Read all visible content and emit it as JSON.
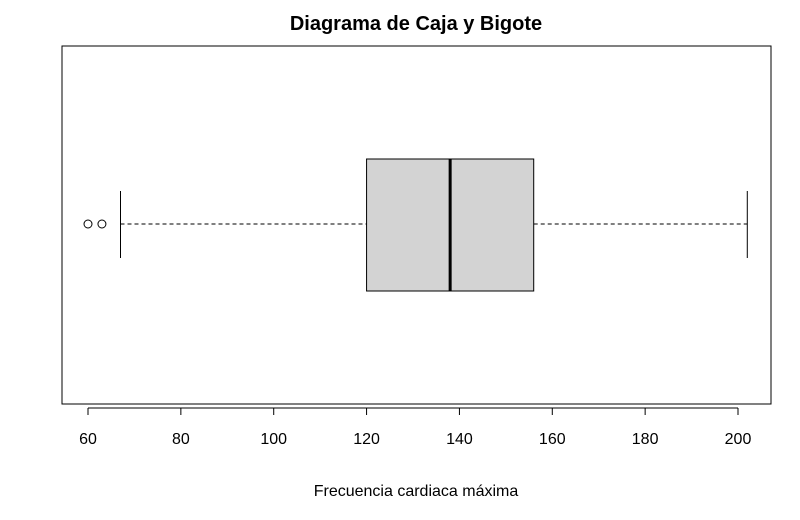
{
  "chart_data": {
    "type": "boxplot",
    "orientation": "horizontal",
    "title": "Diagrama de Caja y Bigote",
    "xlabel": "Frecuencia cardiaca máxima",
    "ylabel": "",
    "xlim": [
      60,
      202
    ],
    "ticks": [
      60,
      80,
      100,
      120,
      140,
      160,
      180,
      200
    ],
    "tick_labels": [
      "60",
      "80",
      "100",
      "120",
      "140",
      "160",
      "180",
      "200"
    ],
    "grid": false,
    "box": {
      "whisker_low": 67,
      "q1": 120,
      "median": 138,
      "q3": 156,
      "whisker_high": 202,
      "outliers": [
        60,
        63
      ]
    },
    "colors": {
      "box_fill": "#d3d3d3",
      "line": "#000000",
      "background": "#ffffff"
    }
  }
}
